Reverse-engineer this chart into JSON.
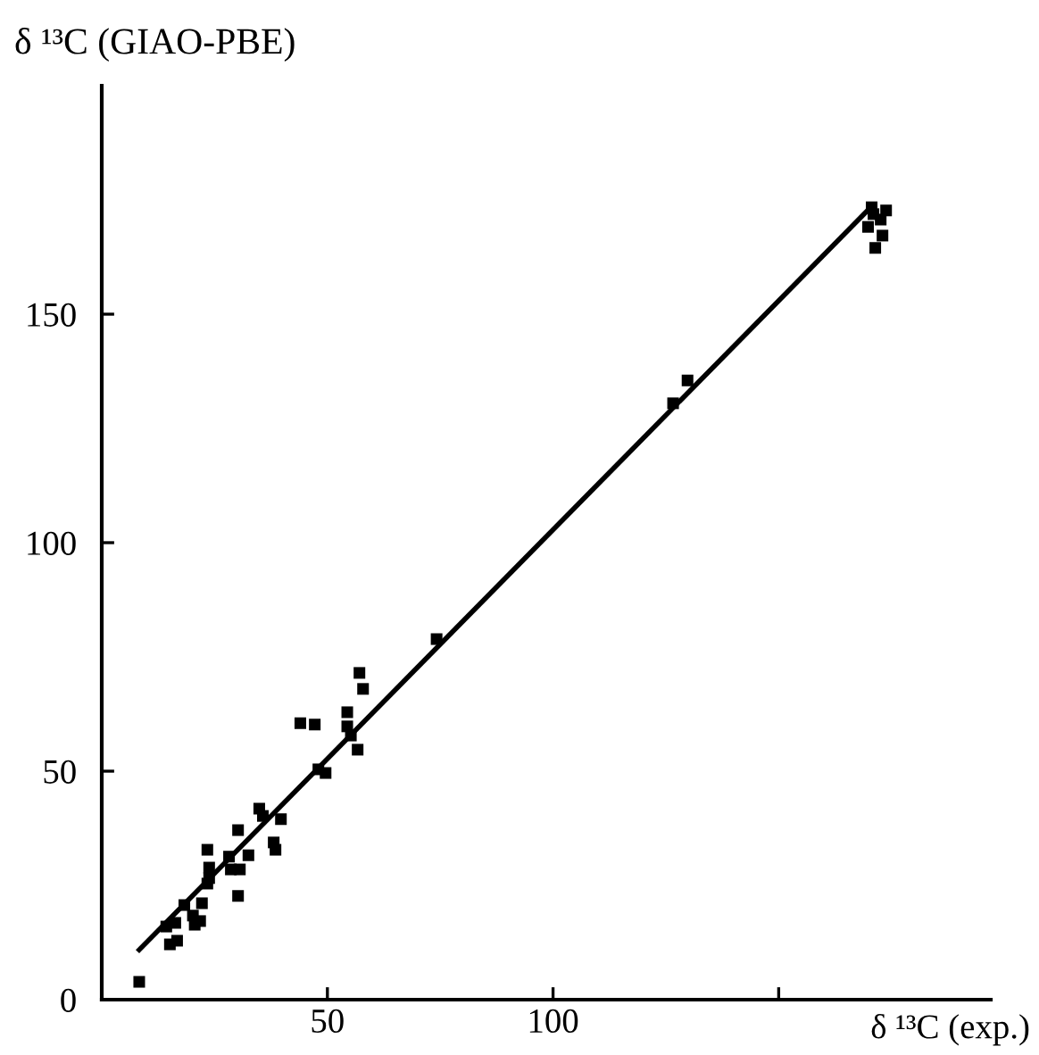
{
  "chart_data": {
    "type": "scatter",
    "xlabel": "δ ¹³C (exp.)",
    "ylabel": "δ ¹³C (GIAO-PBE)",
    "xlim": [
      0,
      197
    ],
    "ylim": [
      0,
      200
    ],
    "xticks": [
      50,
      100,
      {
        "value": 150,
        "label": null
      }
    ],
    "yticks": [
      0,
      50,
      100,
      150
    ],
    "grid": false,
    "legend": false,
    "series": [
      {
        "color": "#000000",
        "marker": "square",
        "x": [
          8.3,
          15.1,
          16.7,
          14.3,
          16.3,
          18.3,
          20.2,
          21.8,
          20.6,
          22.2,
          30.2,
          23.4,
          23.8,
          23.8,
          23.4,
          28.2,
          28.6,
          30.6,
          32.5,
          30.2,
          34.9,
          35.7,
          39.7,
          38.1,
          38.5,
          44.0,
          47.2,
          48.0,
          49.6,
          54.4,
          54.4,
          55.2,
          56.7,
          57.1,
          57.9,
          74.2,
          126.6,
          129.8,
          170.6,
          173.8,
          172.6,
          169.8,
          173.0,
          171.4,
          171.0
        ],
        "values": [
          3.9,
          12.1,
          12.9,
          16.0,
          16.8,
          20.7,
          18.4,
          17.2,
          16.4,
          21.1,
          22.7,
          25.4,
          26.6,
          28.9,
          32.8,
          31.3,
          28.5,
          28.5,
          31.6,
          37.1,
          41.8,
          40.2,
          39.5,
          34.4,
          32.8,
          60.5,
          60.2,
          50.4,
          49.6,
          62.9,
          59.8,
          57.8,
          54.7,
          71.5,
          68.0,
          78.9,
          130.5,
          135.5,
          173.4,
          172.7,
          170.7,
          169.1,
          167.2,
          164.5,
          171.9
        ]
      },
      {
        "type": "line",
        "color": "#000000",
        "line_style": "solid",
        "x": [
          8.3,
          170
        ],
        "values": [
          10.9,
          173
        ]
      }
    ]
  }
}
